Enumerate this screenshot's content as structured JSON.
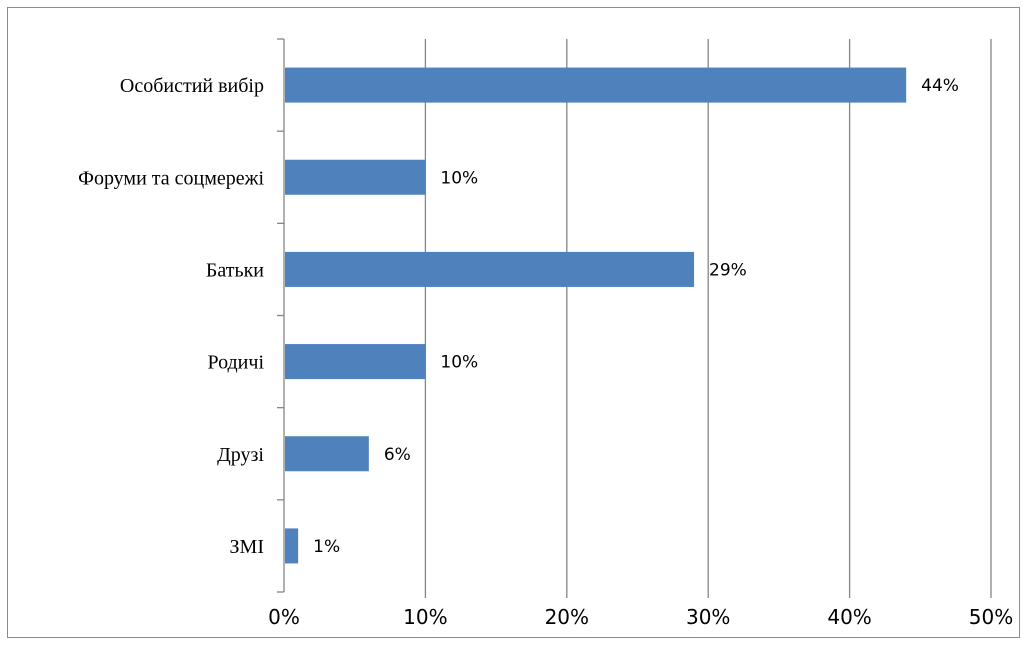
{
  "chart_data": {
    "type": "bar",
    "orientation": "horizontal",
    "categories": [
      "Особистий вибір",
      "Форуми та соцмережі",
      "Батьки ",
      "Родичі",
      "Друзі",
      "ЗМІ"
    ],
    "values": [
      44,
      10,
      29,
      10,
      6,
      1
    ],
    "value_labels": [
      "44%",
      "10%",
      "29%",
      "10%",
      "6%",
      "1%"
    ],
    "x_ticks": [
      "0%",
      "10%",
      "20%",
      "30%",
      "40%",
      "50%"
    ],
    "xlim": [
      0,
      50
    ],
    "title": "",
    "xlabel": "",
    "ylabel": "",
    "grid": true,
    "legend": "none",
    "bar_color": "#4f81bd",
    "grid_color": "#868686"
  }
}
